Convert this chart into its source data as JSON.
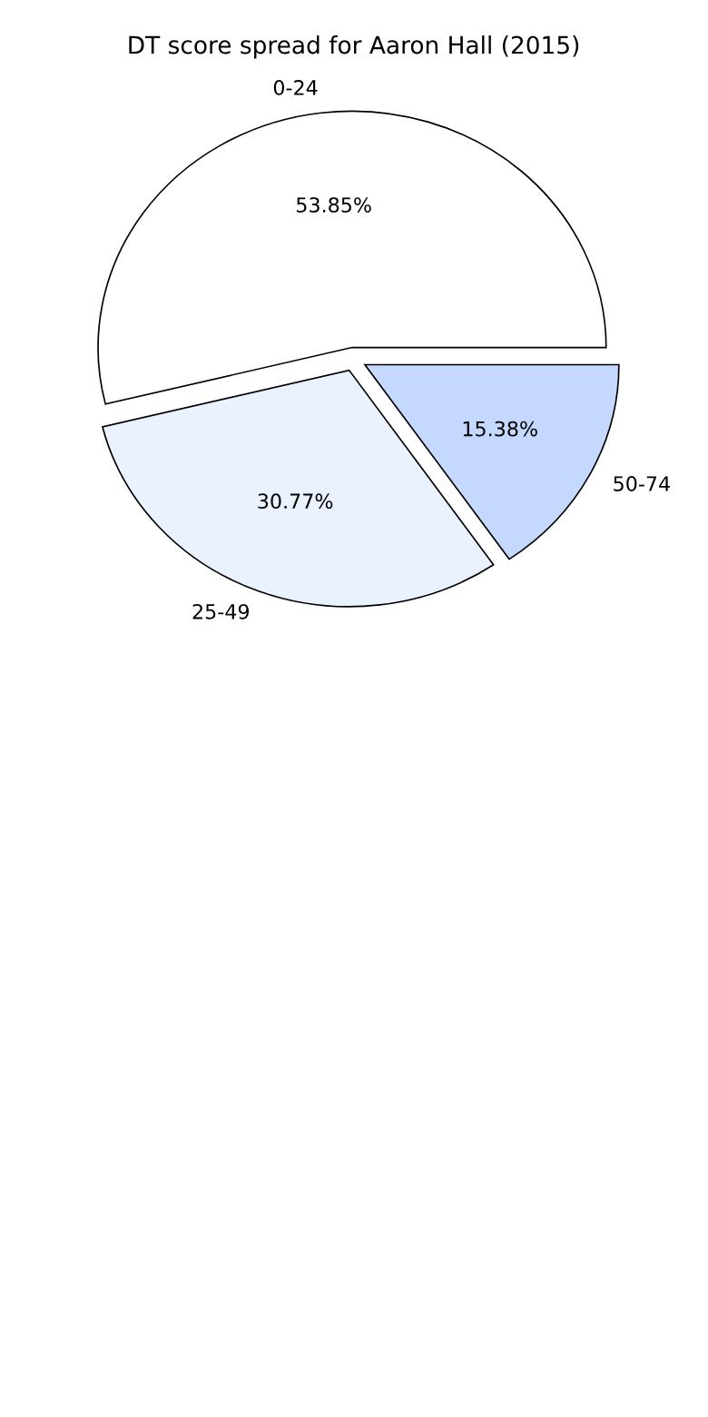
{
  "chart_data": {
    "type": "pie",
    "title": "DT score spread for Aaron Hall (2015)",
    "categories": [
      "0-24",
      "25-49",
      "50-74"
    ],
    "values": [
      53.85,
      30.77,
      15.38
    ],
    "colors": [
      "#ffffff",
      "#eaf1ff",
      "#c5d8ff"
    ],
    "value_labels": [
      "53.85%",
      "30.77%",
      "15.38%"
    ]
  }
}
